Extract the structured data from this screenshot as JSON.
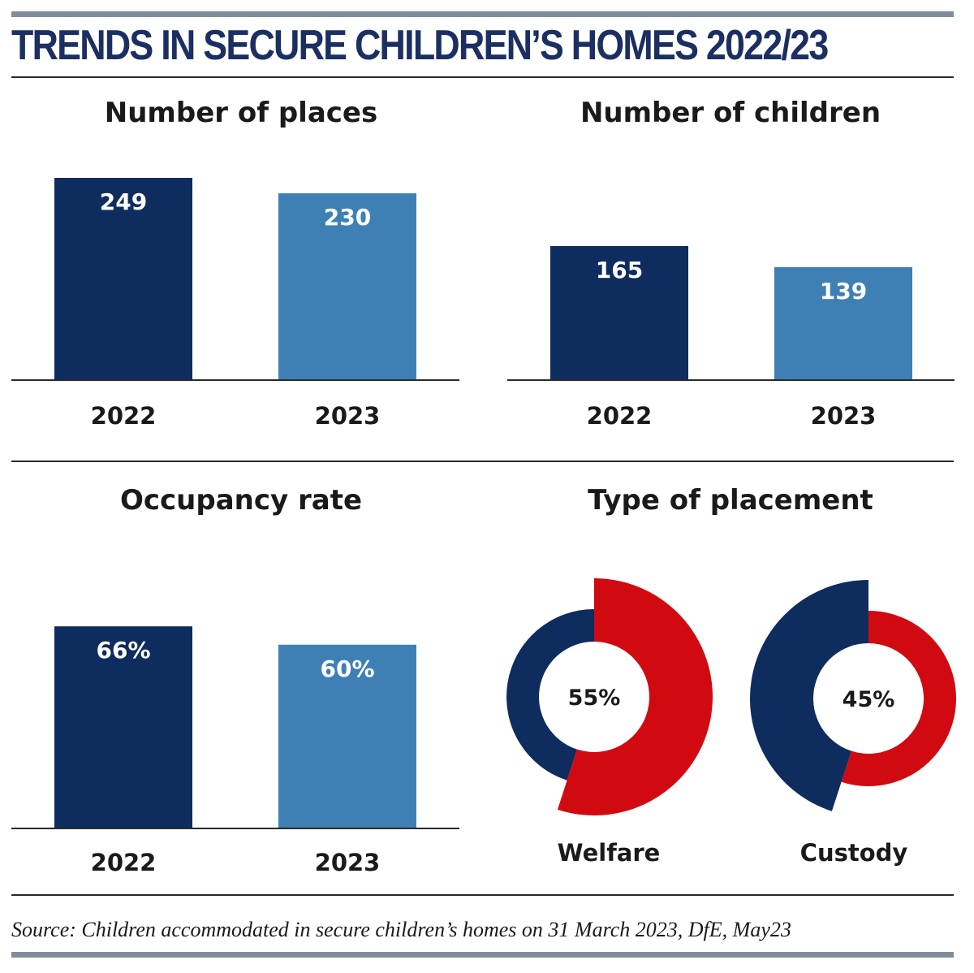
{
  "title": "TRENDS IN SECURE CHILDREN’S HOMES 2022/23",
  "source": "Source: Children accommodated in secure children’s homes on 31 March 2023, DfE, May23",
  "colors": {
    "dark_navy": "#0e2c5e",
    "light_blue": "#3f80b4",
    "red": "#d10a11",
    "rule_gray": "#7f8c99"
  },
  "chart_data": [
    {
      "type": "bar",
      "title": "Number of places",
      "categories": [
        "2022",
        "2023"
      ],
      "values": [
        249,
        230
      ],
      "labels": [
        "249",
        "230"
      ],
      "colors": [
        "#0e2c5e",
        "#3f80b4"
      ]
    },
    {
      "type": "bar",
      "title": "Number of children",
      "categories": [
        "2022",
        "2023"
      ],
      "values": [
        165,
        139
      ],
      "labels": [
        "165",
        "139"
      ],
      "colors": [
        "#0e2c5e",
        "#3f80b4"
      ]
    },
    {
      "type": "bar",
      "title": "Occupancy rate",
      "categories": [
        "2022",
        "2023"
      ],
      "values": [
        66,
        60
      ],
      "labels": [
        "66%",
        "60%"
      ],
      "colors": [
        "#0e2c5e",
        "#3f80b4"
      ]
    },
    {
      "type": "pie",
      "title": "Type of placement",
      "donuts": [
        {
          "name": "Welfare",
          "value": 55,
          "label": "55%",
          "highlight_color": "#d10a11",
          "rest_color": "#0e2c5e"
        },
        {
          "name": "Custody",
          "value": 45,
          "label": "45%",
          "highlight_color": "#0e2c5e",
          "rest_color": "#d10a11"
        }
      ]
    }
  ]
}
